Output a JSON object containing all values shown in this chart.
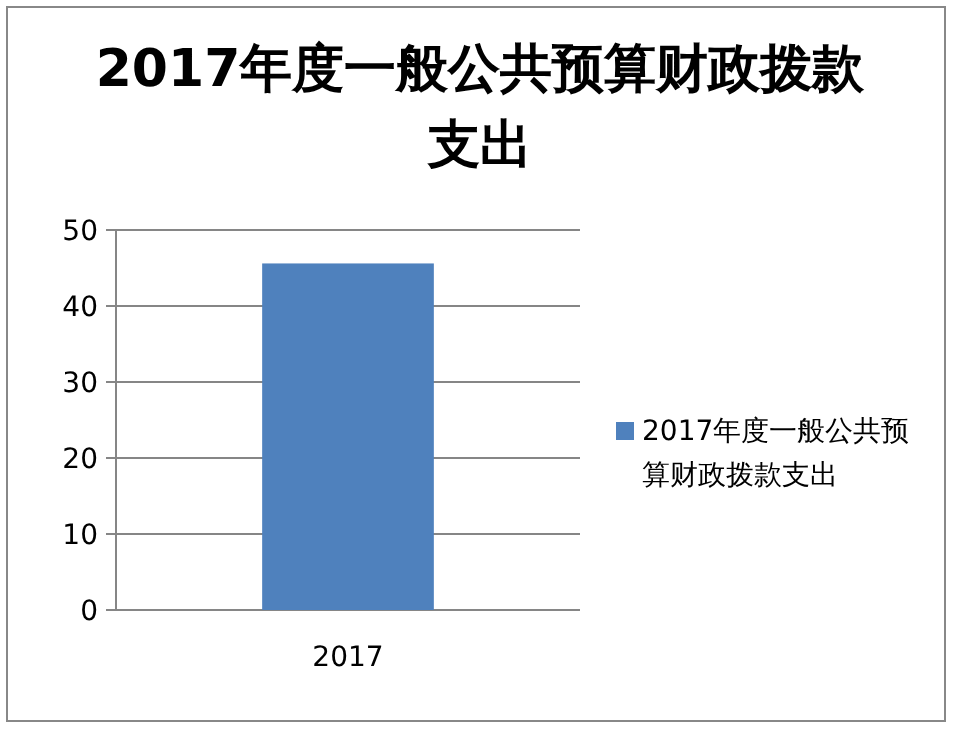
{
  "chart_data": {
    "type": "bar",
    "title": "2017年度一般公共预算财政拨款支出",
    "categories": [
      "2017"
    ],
    "series": [
      {
        "name": "2017年度一般公共预算财政拨款支出",
        "color": "#4f81bd",
        "values": [
          45.6
        ]
      }
    ],
    "ylim": [
      0,
      50
    ],
    "yticks": [
      0,
      10,
      20,
      30,
      40,
      50
    ],
    "grid": "y",
    "legend": "right"
  }
}
